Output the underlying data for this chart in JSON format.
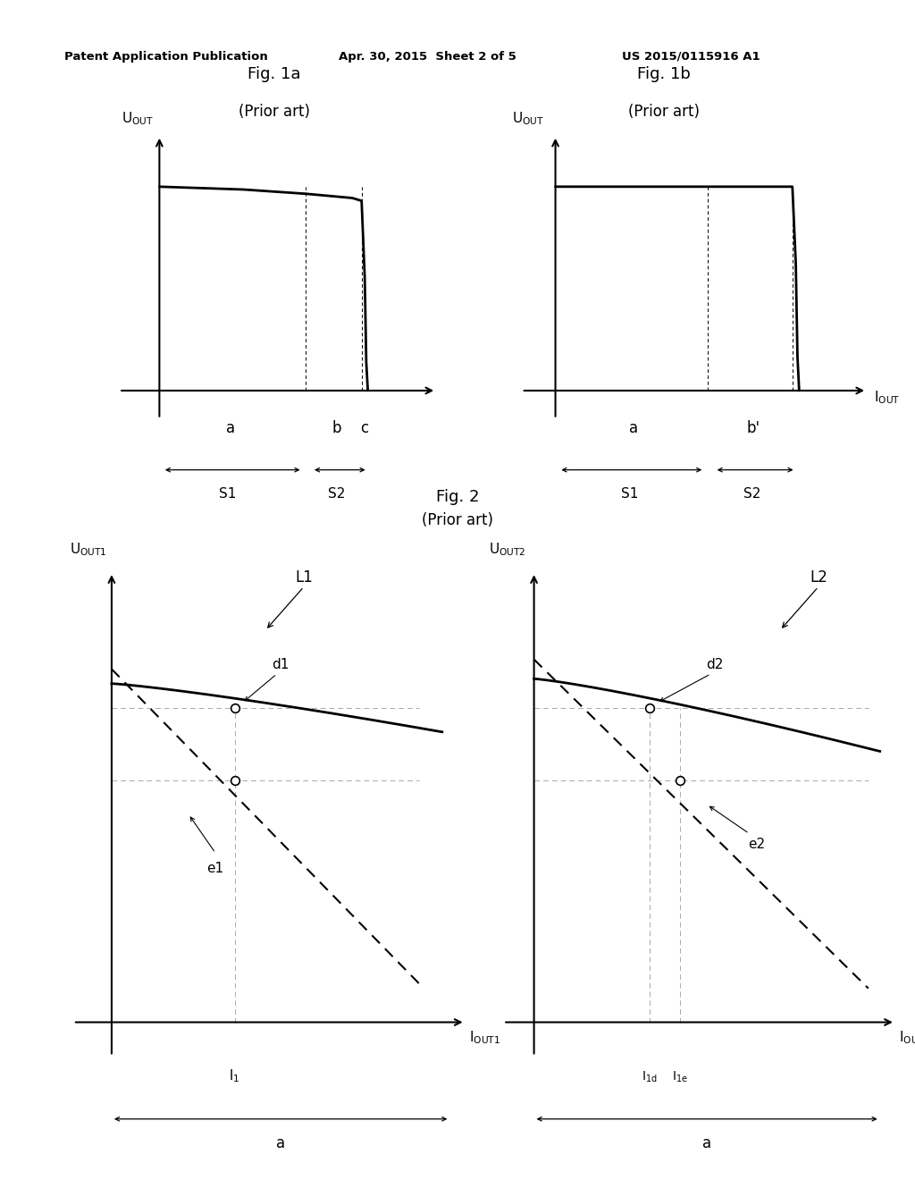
{
  "header_left": "Patent Application Publication",
  "header_mid": "Apr. 30, 2015  Sheet 2 of 5",
  "header_right": "US 2015/0115916 A1",
  "fig1a_title": "Fig. 1a",
  "fig1a_subtitle": "(Prior art)",
  "fig1b_title": "Fig. 1b",
  "fig1b_subtitle": "(Prior art)",
  "fig2_title": "Fig. 2",
  "fig2_subtitle": "(Prior art)",
  "background_color": "#ffffff",
  "line_color": "#000000"
}
